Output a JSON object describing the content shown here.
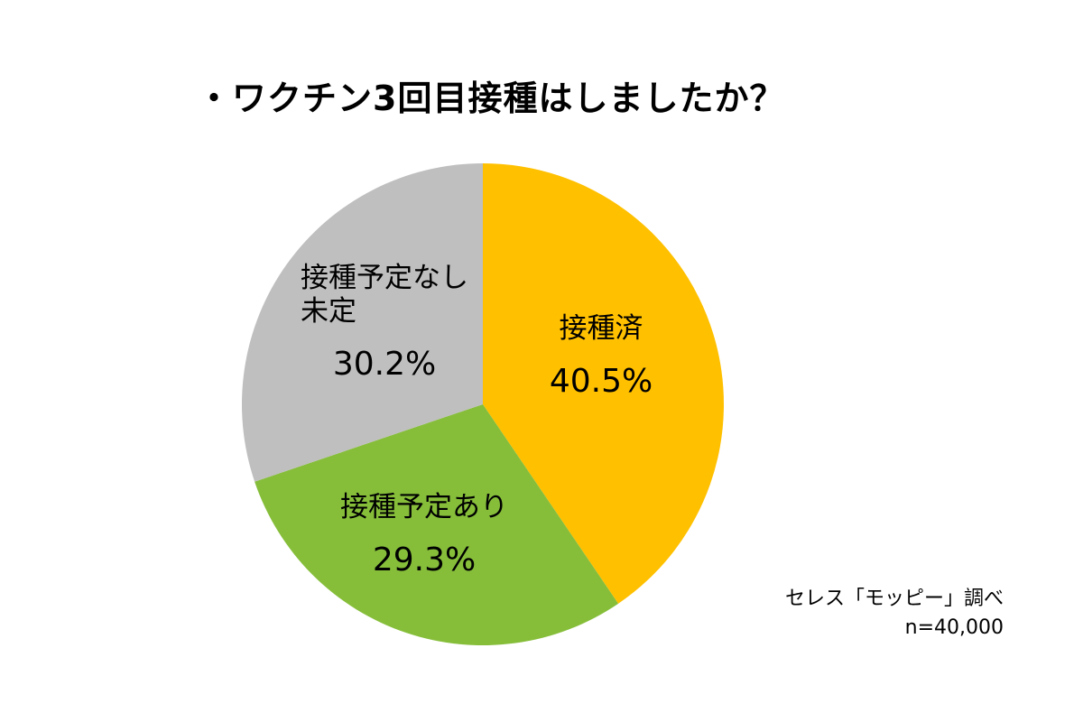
{
  "chart_data": {
    "type": "pie",
    "title": "・ワクチン3回目接種はしましたか？",
    "slices": [
      {
        "label_lines": [
          "接種済"
        ],
        "value": 40.5,
        "value_label": "40.5%",
        "color": "#FFC000"
      },
      {
        "label_lines": [
          "接種予定あり"
        ],
        "value": 29.3,
        "value_label": "29.3%",
        "color": "#86BE3A"
      },
      {
        "label_lines": [
          "接種予定なし",
          "未定"
        ],
        "value": 30.2,
        "value_label": "30.2%",
        "color": "#BFBFBF"
      }
    ],
    "legend": "none",
    "start_angle": "12 o'clock",
    "direction": "clockwise"
  },
  "footnote": {
    "source": "セレス「モッピー」調べ",
    "sample": "n=40,000"
  }
}
